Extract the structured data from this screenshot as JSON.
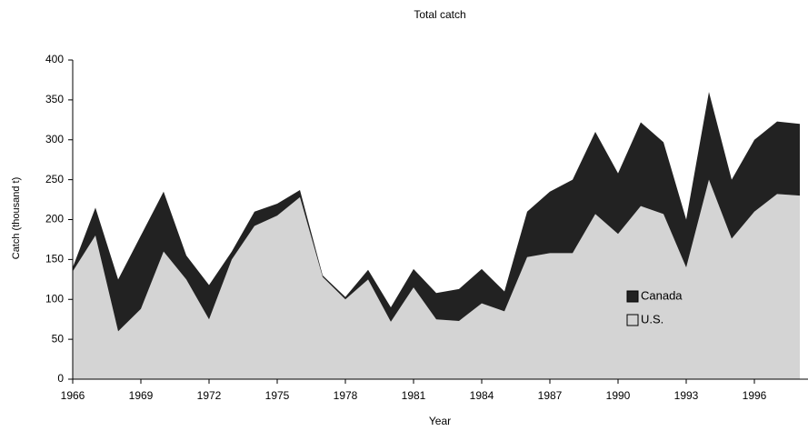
{
  "chart_data": {
    "type": "stacked_area",
    "title": "Total catch",
    "xlabel": "Year",
    "ylabel": "Catch (thousand t)",
    "x": [
      1966,
      1967,
      1968,
      1969,
      1970,
      1971,
      1972,
      1973,
      1974,
      1975,
      1976,
      1977,
      1978,
      1979,
      1980,
      1981,
      1982,
      1983,
      1984,
      1985,
      1986,
      1987,
      1988,
      1989,
      1990,
      1991,
      1992,
      1993,
      1994,
      1995,
      1996,
      1997,
      1998
    ],
    "series": [
      {
        "name": "U.S.",
        "color": "#d4d4d4",
        "values": [
          135,
          180,
          60,
          88,
          160,
          125,
          75,
          150,
          192,
          205,
          228,
          128,
          100,
          125,
          72,
          115,
          75,
          73,
          95,
          85,
          153,
          158,
          158,
          207,
          182,
          217,
          207,
          140,
          250,
          176,
          210,
          232,
          230
        ]
      },
      {
        "name": "Canada",
        "color": "#222222",
        "values": [
          5,
          35,
          65,
          92,
          75,
          30,
          43,
          10,
          18,
          15,
          9,
          2,
          3,
          12,
          18,
          23,
          33,
          40,
          43,
          25,
          57,
          77,
          92,
          103,
          76,
          105,
          90,
          60,
          110,
          74,
          90,
          91,
          90
        ]
      }
    ],
    "xlim": [
      1966,
      1998
    ],
    "xticks": [
      1966,
      1969,
      1972,
      1975,
      1978,
      1981,
      1984,
      1987,
      1990,
      1993,
      1996
    ],
    "ylim": [
      0,
      400
    ],
    "yticks": [
      0,
      50,
      100,
      150,
      200,
      250,
      300,
      350,
      400
    ],
    "legend": "lower-right"
  }
}
